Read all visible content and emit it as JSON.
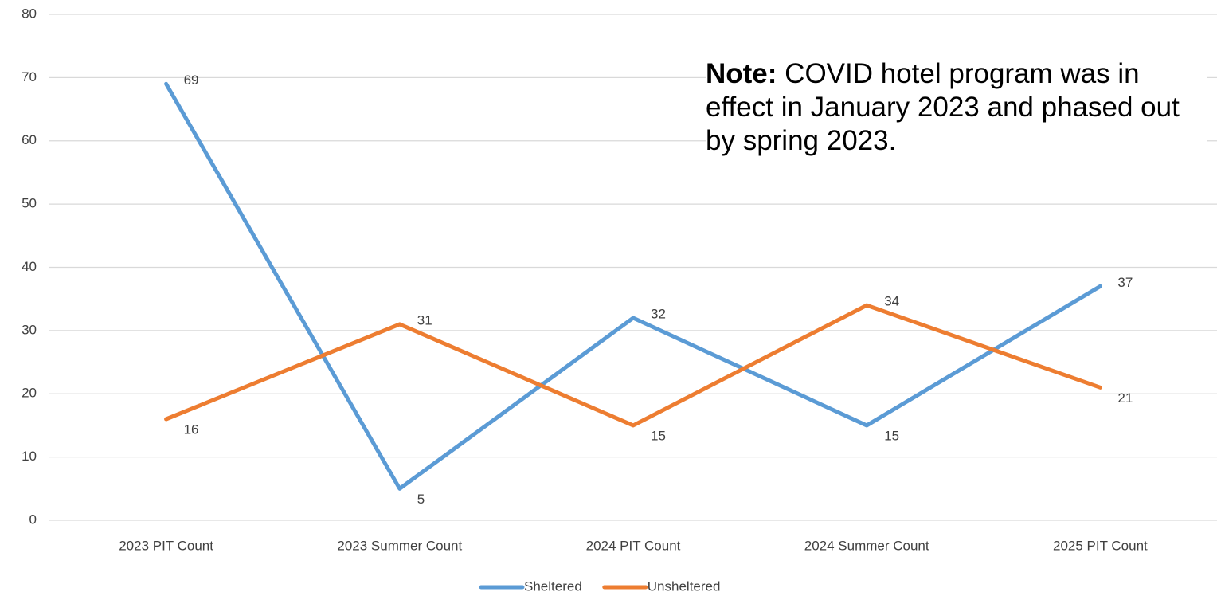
{
  "chart_data": {
    "type": "line",
    "categories": [
      "2023 PIT Count",
      "2023 Summer Count",
      "2024 PIT Count",
      "2024 Summer Count",
      "2025 PIT Count"
    ],
    "series": [
      {
        "name": "Sheltered",
        "color": "#5b9bd5",
        "values": [
          69,
          5,
          32,
          15,
          37
        ]
      },
      {
        "name": "Unsheltered",
        "color": "#ed7d31",
        "values": [
          16,
          31,
          15,
          34,
          21
        ]
      }
    ],
    "ylim": [
      0,
      80
    ],
    "yticks": [
      0,
      10,
      20,
      30,
      40,
      50,
      60,
      70,
      80
    ],
    "grid": true,
    "legend": "bottom",
    "annotation": {
      "bold": "Note:",
      "text": "COVID hotel program was in effect in January 2023 and phased out by spring 2023."
    }
  }
}
